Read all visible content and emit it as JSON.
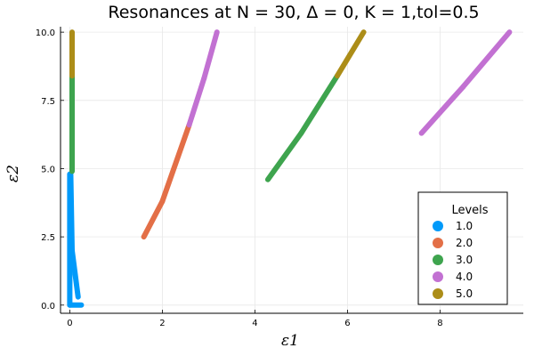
{
  "chart_data": {
    "type": "scatter",
    "title": "Resonances at N = 30, Δ = 0, K = 1,tol=0.5",
    "xlabel": "ε1",
    "ylabel": "ε2",
    "xlim": [
      -0.2,
      9.8
    ],
    "ylim": [
      -0.3,
      10.2
    ],
    "xticks": [
      "0",
      "2",
      "4",
      "6",
      "8"
    ],
    "yticks": [
      "0.0",
      "2.5",
      "5.0",
      "7.5",
      "10.0"
    ],
    "grid": true,
    "legend": {
      "title": "Levels",
      "placement": "bottom-right"
    },
    "series": [
      {
        "name": "1.0",
        "color": "#009AFA",
        "segments": [
          {
            "from": [
              0.02,
              4.8
            ],
            "to": [
              0.05,
              2.0
            ]
          },
          {
            "from": [
              0.05,
              2.0
            ],
            "to": [
              0.18,
              0.3
            ]
          },
          {
            "from": [
              0.0,
              0.0
            ],
            "to": [
              0.25,
              0.0
            ]
          },
          {
            "from": [
              0.0,
              4.8
            ],
            "to": [
              0.0,
              0.0
            ]
          }
        ]
      },
      {
        "name": "2.0",
        "color": "#E36F47",
        "segments": [
          {
            "from": [
              1.6,
              2.5
            ],
            "to": [
              2.0,
              3.8
            ]
          },
          {
            "from": [
              2.0,
              3.8
            ],
            "to": [
              2.58,
              6.6
            ]
          }
        ]
      },
      {
        "name": "3.0",
        "color": "#3EA44E",
        "segments": [
          {
            "from": [
              0.05,
              4.9
            ],
            "to": [
              0.05,
              8.4
            ]
          },
          {
            "from": [
              4.28,
              4.6
            ],
            "to": [
              5.0,
              6.3
            ]
          },
          {
            "from": [
              5.0,
              6.3
            ],
            "to": [
              5.78,
              8.4
            ]
          }
        ]
      },
      {
        "name": "4.0",
        "color": "#C271D2",
        "segments": [
          {
            "from": [
              2.58,
              6.6
            ],
            "to": [
              2.9,
              8.3
            ]
          },
          {
            "from": [
              2.9,
              8.3
            ],
            "to": [
              3.18,
              10.0
            ]
          },
          {
            "from": [
              7.6,
              6.3
            ],
            "to": [
              8.5,
              8.0
            ]
          },
          {
            "from": [
              8.5,
              8.0
            ],
            "to": [
              9.5,
              10.0
            ]
          }
        ]
      },
      {
        "name": "5.0",
        "color": "#AC8D18",
        "segments": [
          {
            "from": [
              0.05,
              8.4
            ],
            "to": [
              0.05,
              10.0
            ]
          },
          {
            "from": [
              5.78,
              8.4
            ],
            "to": [
              6.35,
              10.0
            ]
          }
        ]
      }
    ]
  }
}
